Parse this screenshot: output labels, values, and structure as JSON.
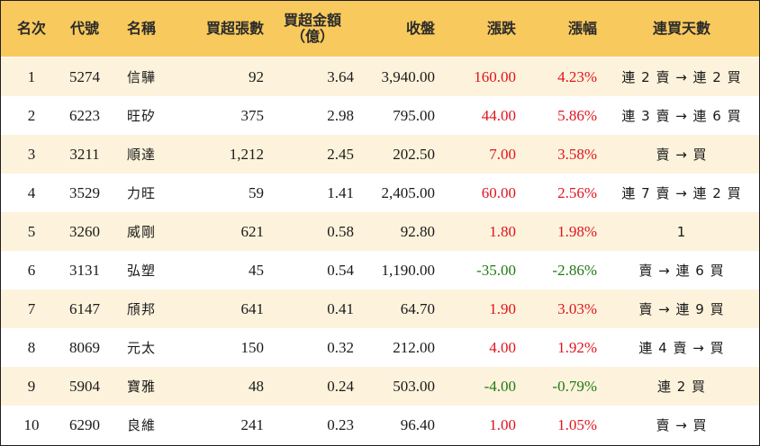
{
  "headers": {
    "rank": "名次",
    "code": "代號",
    "name": "名稱",
    "net_lots": "買超張數",
    "net_amount_line1": "買超金額",
    "net_amount_line2": "（億）",
    "close": "收盤",
    "change": "漲跌",
    "change_pct": "漲幅",
    "streak": "連買天數"
  },
  "rows": [
    {
      "rank": "1",
      "code": "5274",
      "name": "信驊",
      "net_lots": "92",
      "net_amount": "3.64",
      "close": "3,940.00",
      "change": "160.00",
      "change_pct": "4.23%",
      "streak": "連 2 賣 → 連 2 買",
      "dir": "up"
    },
    {
      "rank": "2",
      "code": "6223",
      "name": "旺矽",
      "net_lots": "375",
      "net_amount": "2.98",
      "close": "795.00",
      "change": "44.00",
      "change_pct": "5.86%",
      "streak": "連 3 賣 → 連 6 買",
      "dir": "up"
    },
    {
      "rank": "3",
      "code": "3211",
      "name": "順達",
      "net_lots": "1,212",
      "net_amount": "2.45",
      "close": "202.50",
      "change": "7.00",
      "change_pct": "3.58%",
      "streak": "賣 → 買",
      "dir": "up"
    },
    {
      "rank": "4",
      "code": "3529",
      "name": "力旺",
      "net_lots": "59",
      "net_amount": "1.41",
      "close": "2,405.00",
      "change": "60.00",
      "change_pct": "2.56%",
      "streak": "連 7 賣 → 連 2 買",
      "dir": "up"
    },
    {
      "rank": "5",
      "code": "3260",
      "name": "威剛",
      "net_lots": "621",
      "net_amount": "0.58",
      "close": "92.80",
      "change": "1.80",
      "change_pct": "1.98%",
      "streak": "1",
      "dir": "up"
    },
    {
      "rank": "6",
      "code": "3131",
      "name": "弘塑",
      "net_lots": "45",
      "net_amount": "0.54",
      "close": "1,190.00",
      "change": "-35.00",
      "change_pct": "-2.86%",
      "streak": "賣 → 連 6 買",
      "dir": "down"
    },
    {
      "rank": "7",
      "code": "6147",
      "name": "頎邦",
      "net_lots": "641",
      "net_amount": "0.41",
      "close": "64.70",
      "change": "1.90",
      "change_pct": "3.03%",
      "streak": "賣 → 連 9 買",
      "dir": "up"
    },
    {
      "rank": "8",
      "code": "8069",
      "name": "元太",
      "net_lots": "150",
      "net_amount": "0.32",
      "close": "212.00",
      "change": "4.00",
      "change_pct": "1.92%",
      "streak": "連 4 賣 → 買",
      "dir": "up"
    },
    {
      "rank": "9",
      "code": "5904",
      "name": "寶雅",
      "net_lots": "48",
      "net_amount": "0.24",
      "close": "503.00",
      "change": "-4.00",
      "change_pct": "-0.79%",
      "streak": "連 2 買",
      "dir": "down"
    },
    {
      "rank": "10",
      "code": "6290",
      "name": "良維",
      "net_lots": "241",
      "net_amount": "0.23",
      "close": "96.40",
      "change": "1.00",
      "change_pct": "1.05%",
      "streak": "賣 → 買",
      "dir": "up"
    }
  ],
  "colors": {
    "header_bg": "#f8c95c",
    "row_alt_bg": "#fdf3dc",
    "up": "#e0141e",
    "down": "#1f7a12"
  }
}
